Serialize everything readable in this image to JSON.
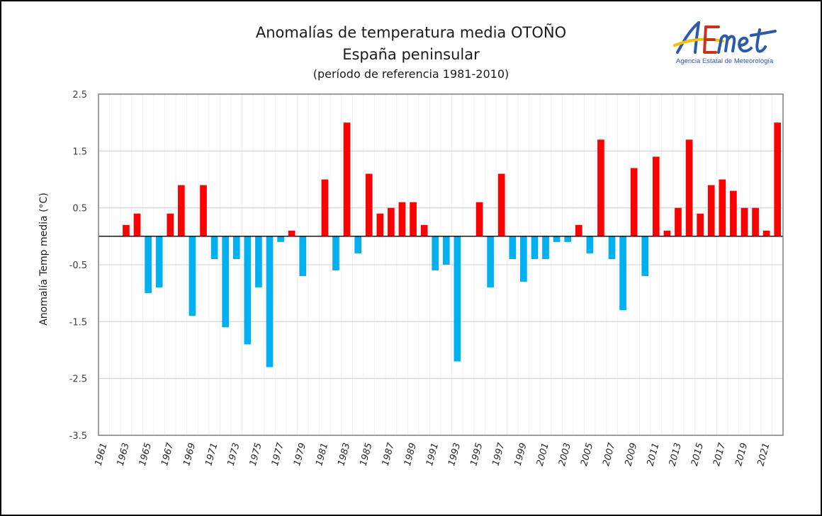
{
  "header": {
    "title_line1": "Anomalías de temperatura media OTOÑO",
    "title_line2": "España peninsular",
    "title_line3": "(período de referencia 1981-2010)"
  },
  "logo": {
    "wordmark": "AEMet",
    "caption": "Agencia Estatal de Meteorología",
    "colors": {
      "blue": "#2a5aa8",
      "red": "#c8321e",
      "yellow": "#f2c200"
    }
  },
  "colors": {
    "positive": "#ff0000",
    "negative": "#00b0f0",
    "gridline": "#d9d9d9",
    "vertical_gridline": "#f0f0f0",
    "axis": "#808080",
    "zero_line": "#000000"
  },
  "chart_data": {
    "type": "bar",
    "title": "Anomalías de temperatura media OTOÑO",
    "subtitle": "España peninsular (período de referencia 1981-2010)",
    "xlabel": "",
    "ylabel": "Anomalía Temp media (°C)",
    "ylim": [
      -3.5,
      2.5
    ],
    "yticks": [
      2.5,
      1.5,
      0.5,
      -0.5,
      -1.5,
      -2.5,
      -3.5
    ],
    "ytick_labels": [
      "2.5",
      "1.5",
      "0.5",
      "-0.5",
      "-1.5",
      "-2.5",
      "-3.5"
    ],
    "xtick_labels": [
      "1961",
      "1963",
      "1965",
      "1967",
      "1969",
      "1971",
      "1973",
      "1975",
      "1977",
      "1979",
      "1981",
      "1983",
      "1985",
      "1987",
      "1989",
      "1991",
      "1993",
      "1995",
      "1997",
      "1999",
      "2001",
      "2003",
      "2005",
      "2007",
      "2009",
      "2011",
      "2013",
      "2015",
      "2017",
      "2019",
      "2021"
    ],
    "grid": true,
    "legend": "none",
    "categories": [
      "1961",
      "1962",
      "1963",
      "1964",
      "1965",
      "1966",
      "1967",
      "1968",
      "1969",
      "1970",
      "1971",
      "1972",
      "1973",
      "1974",
      "1975",
      "1976",
      "1977",
      "1978",
      "1979",
      "1980",
      "1981",
      "1982",
      "1983",
      "1984",
      "1985",
      "1986",
      "1987",
      "1988",
      "1989",
      "1990",
      "1991",
      "1992",
      "1993",
      "1994",
      "1995",
      "1996",
      "1997",
      "1998",
      "1999",
      "2000",
      "2001",
      "2002",
      "2003",
      "2004",
      "2005",
      "2006",
      "2007",
      "2008",
      "2009",
      "2010",
      "2011",
      "2012",
      "2013",
      "2014",
      "2015",
      "2016",
      "2017",
      "2018",
      "2019",
      "2020",
      "2021",
      "2022"
    ],
    "values": [
      0,
      0,
      0.2,
      0.4,
      -1.0,
      -0.9,
      0.4,
      0.9,
      -1.4,
      0.9,
      -0.4,
      -1.6,
      -0.4,
      -1.9,
      -0.9,
      -2.3,
      -0.1,
      0.1,
      -0.7,
      0,
      1.0,
      -0.6,
      2.0,
      -0.3,
      1.1,
      0.4,
      0.5,
      0.6,
      0.6,
      0.2,
      -0.6,
      -0.5,
      -2.2,
      0,
      0.6,
      -0.9,
      1.1,
      -0.4,
      -0.8,
      -0.4,
      -0.4,
      -0.1,
      -0.1,
      0.2,
      -0.3,
      1.7,
      -0.4,
      -1.3,
      1.2,
      -0.7,
      1.4,
      0.1,
      0.5,
      1.7,
      0.4,
      0.9,
      1.0,
      0.8,
      0.5,
      0.5,
      0.1,
      2.0
    ]
  }
}
